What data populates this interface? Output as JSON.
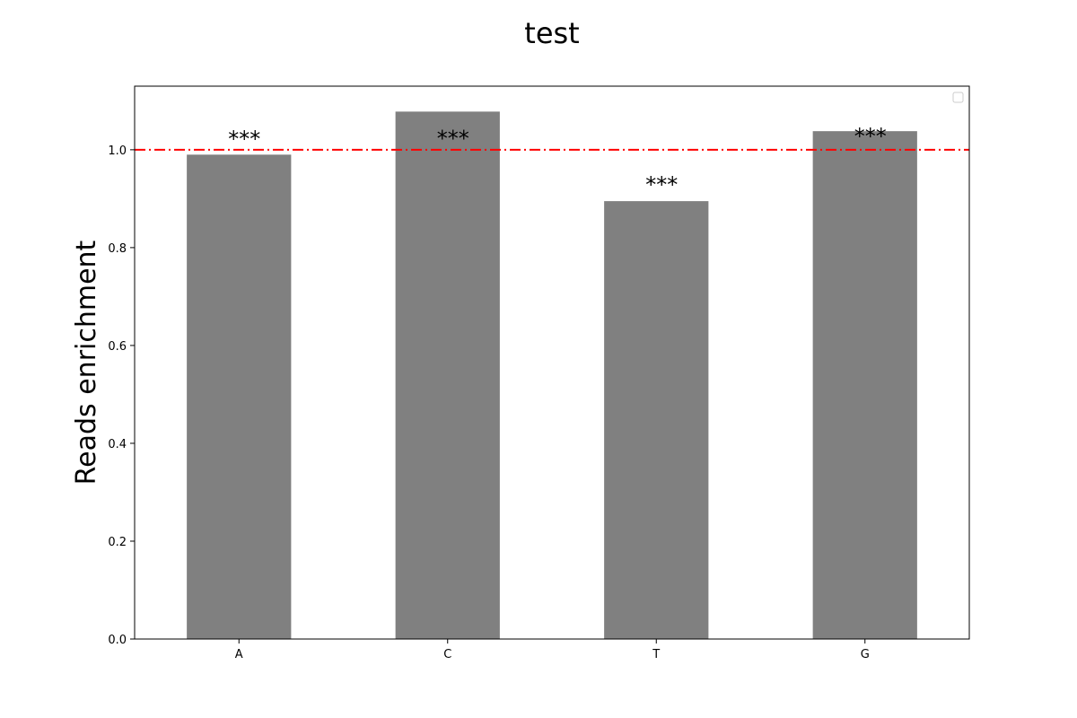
{
  "chart_data": {
    "type": "bar",
    "title": "test",
    "xlabel": "",
    "ylabel": "Reads enrichment",
    "categories": [
      "A",
      "C",
      "T",
      "G"
    ],
    "values": [
      0.99,
      1.078,
      0.895,
      1.038
    ],
    "annotations": [
      "***",
      "***",
      "***",
      "***"
    ],
    "bar_color": "#808080",
    "reference_line": {
      "y": 1.0,
      "color": "#ff0000",
      "style": "dash-dot"
    },
    "ylim": [
      0,
      1.13
    ],
    "yticks": [
      0.0,
      0.2,
      0.4,
      0.6,
      0.8,
      1.0
    ],
    "ytick_labels": [
      "0.0",
      "0.2",
      "0.4",
      "0.6",
      "0.8",
      "1.0"
    ],
    "grid": false,
    "legend": {
      "placement": "top-right",
      "entries": []
    }
  }
}
